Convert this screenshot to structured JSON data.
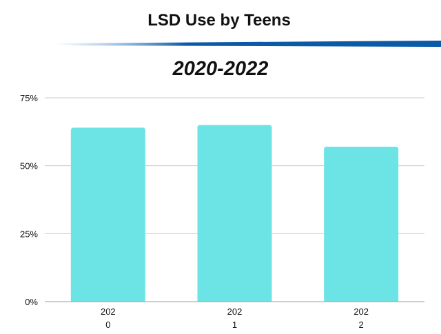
{
  "colors": {
    "bar": "#6ce4e6",
    "grid": "#c8c8c8",
    "axis": "#9e9e9e",
    "text": "#111111",
    "stripe_dark": "#0b5aa8",
    "stripe_light": "#7fb3df"
  },
  "chart_data": {
    "type": "bar",
    "title": "LSD Use by Teens",
    "subtitle": "2020-2022",
    "categories": [
      "2020",
      "2021",
      "2022"
    ],
    "category_labels": [
      [
        "202",
        "0"
      ],
      [
        "202",
        "1"
      ],
      [
        "202",
        "2"
      ]
    ],
    "values": [
      64,
      65,
      57
    ],
    "ylim": [
      0,
      75
    ],
    "yticks": [
      0,
      25,
      50,
      75
    ],
    "ytick_labels": [
      "0%",
      "25%",
      "50%",
      "75%"
    ],
    "grid": true,
    "legend": "none"
  }
}
